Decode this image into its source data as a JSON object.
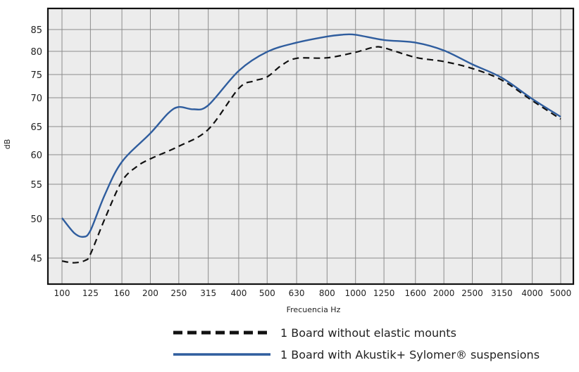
{
  "chart_data": {
    "type": "line",
    "title": "",
    "xlabel": "Frecuencia Hz",
    "ylabel": "dB",
    "x_scale": "log",
    "categories": [
      "100",
      "125",
      "160",
      "200",
      "250",
      "315",
      "400",
      "500",
      "630",
      "800",
      "1000",
      "1250",
      "1600",
      "2000",
      "2500",
      "3150",
      "4000",
      "5000"
    ],
    "yticks": [
      45,
      50,
      55,
      60,
      65,
      70,
      75,
      80,
      85
    ],
    "grid": true,
    "legend_position": "bottom-right",
    "series": [
      {
        "name": "1 Board without elastic mounts",
        "style": "dashed",
        "color": "#111111",
        "points": [
          [
            100,
            44.5
          ],
          [
            110,
            44.2
          ],
          [
            120,
            44.6
          ],
          [
            125,
            45.5
          ],
          [
            140,
            50
          ],
          [
            160,
            55.5
          ],
          [
            180,
            58
          ],
          [
            200,
            59.3
          ],
          [
            250,
            61.5
          ],
          [
            315,
            64.5
          ],
          [
            400,
            72
          ],
          [
            450,
            73.6
          ],
          [
            500,
            74.5
          ],
          [
            560,
            77
          ],
          [
            630,
            78.5
          ],
          [
            800,
            78.6
          ],
          [
            1000,
            79.8
          ],
          [
            1150,
            80.9
          ],
          [
            1250,
            80.8
          ],
          [
            1600,
            78.7
          ],
          [
            2000,
            77.8
          ],
          [
            2500,
            76.3
          ],
          [
            3150,
            73.8
          ],
          [
            4000,
            69.5
          ],
          [
            5000,
            66.3
          ]
        ]
      },
      {
        "name": "1 Board with Akustik+ Sylomer® suspensions",
        "style": "solid",
        "color": "#2f5d9e",
        "points": [
          [
            100,
            50.1
          ],
          [
            110,
            48.2
          ],
          [
            118,
            47.7
          ],
          [
            125,
            48.5
          ],
          [
            140,
            53.5
          ],
          [
            160,
            58.8
          ],
          [
            200,
            63.8
          ],
          [
            230,
            67.3
          ],
          [
            250,
            68.4
          ],
          [
            280,
            68
          ],
          [
            315,
            68.7
          ],
          [
            400,
            75.8
          ],
          [
            500,
            79.9
          ],
          [
            630,
            82
          ],
          [
            800,
            83.4
          ],
          [
            900,
            83.8
          ],
          [
            1000,
            83.8
          ],
          [
            1250,
            82.6
          ],
          [
            1600,
            82
          ],
          [
            2000,
            80.2
          ],
          [
            2500,
            77.2
          ],
          [
            3150,
            74.3
          ],
          [
            4000,
            69.8
          ],
          [
            5000,
            66.7
          ]
        ]
      }
    ]
  }
}
